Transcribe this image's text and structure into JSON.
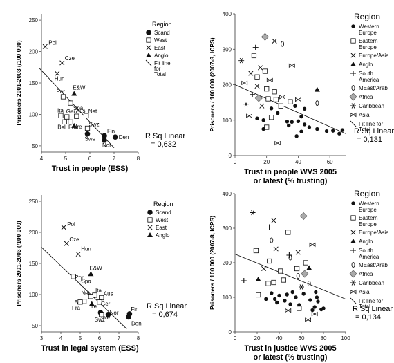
{
  "chart_data": [
    {
      "type": "scatter",
      "xlabel": "Trust in people (ESS)",
      "ylabel": "Prisoners 2001-2003 (/100 000)",
      "xlim": [
        4,
        8
      ],
      "ylim": [
        40,
        260
      ],
      "x_ticks": [
        "4",
        "5",
        "6",
        "7",
        "8"
      ],
      "y_ticks": [
        "50",
        "100",
        "150",
        "200",
        "250"
      ],
      "legend_title": "Region",
      "legend": [
        "Scand",
        "West",
        "East",
        "Anglo",
        "Fit line for Total"
      ],
      "rsq_label": "R Sq Linear",
      "rsq_value": "= 0,632",
      "fit_line": [
        [
          3.9,
          174
        ],
        [
          7.0,
          47
        ]
      ],
      "points": [
        {
          "label": "Pol",
          "x": 4.15,
          "y": 208,
          "region": "East"
        },
        {
          "label": "Cze",
          "x": 4.85,
          "y": 182,
          "region": "East"
        },
        {
          "label": "Hun",
          "x": 4.65,
          "y": 165,
          "region": "East"
        },
        {
          "label": "E&W",
          "x": 5.35,
          "y": 133,
          "region": "Anglo"
        },
        {
          "label": "Por",
          "x": 4.9,
          "y": 128,
          "region": "West"
        },
        {
          "label": "Spa",
          "x": 5.2,
          "y": 118,
          "region": "West"
        },
        {
          "label": "Ita",
          "x": 4.8,
          "y": 98,
          "region": "West"
        },
        {
          "label": "Ger",
          "x": 5.05,
          "y": 96,
          "region": "West"
        },
        {
          "label": "Aus",
          "x": 5.45,
          "y": 97,
          "region": "West"
        },
        {
          "label": "Net",
          "x": 5.85,
          "y": 98,
          "region": "West"
        },
        {
          "label": "Bel",
          "x": 4.95,
          "y": 88,
          "region": "West"
        },
        {
          "label": "Fra",
          "x": 5.2,
          "y": 88,
          "region": "West"
        },
        {
          "label": "Ire",
          "x": 5.35,
          "y": 82,
          "region": "Anglo"
        },
        {
          "label": "Swz",
          "x": 5.9,
          "y": 78,
          "region": "West"
        },
        {
          "label": "Fin",
          "x": 6.6,
          "y": 66,
          "region": "Scand"
        },
        {
          "label": "Den",
          "x": 7.05,
          "y": 64,
          "region": "Scand"
        },
        {
          "label": "Swe",
          "x": 5.9,
          "y": 69,
          "region": "Scand"
        },
        {
          "label": "Nor",
          "x": 6.6,
          "y": 59,
          "region": "Scand"
        }
      ]
    },
    {
      "type": "scatter",
      "xlabel": "Trust in people WVS 2005\nor latest (% trusting)",
      "ylabel": "Prisoners / 100 000 (2007-8, ICPS)",
      "xlim": [
        0,
        70
      ],
      "ylim": [
        0,
        400
      ],
      "x_ticks": [
        "0",
        "20",
        "40",
        "60"
      ],
      "y_ticks": [
        "0",
        "100",
        "200",
        "300",
        "400"
      ],
      "legend_title": "Region",
      "legend": [
        "Western Europe",
        "Eastern Europe",
        "Europe/Asia",
        "Anglo",
        "South America",
        "MEast/Arab",
        "Africa",
        "Caribbean",
        "Asia",
        "Fit line for Total"
      ],
      "rsq_label": "R Sq Linear",
      "rsq_value": "= 0,131",
      "fit_line": [
        [
          0,
          200
        ],
        [
          70,
          62
        ]
      ],
      "points": [
        {
          "x": 19,
          "y": 335,
          "region": "Africa"
        },
        {
          "x": 25,
          "y": 323,
          "region": "Europe/Asia"
        },
        {
          "x": 13,
          "y": 305,
          "region": "South America"
        },
        {
          "x": 30,
          "y": 315,
          "region": "MEast/Arab"
        },
        {
          "x": 12,
          "y": 282,
          "region": "Eastern Europe"
        },
        {
          "x": 4,
          "y": 268,
          "region": "Caribbean"
        },
        {
          "x": 16,
          "y": 248,
          "region": "Europe/Asia"
        },
        {
          "x": 19,
          "y": 238,
          "region": "Eastern Europe"
        },
        {
          "x": 36,
          "y": 254,
          "region": "Asia"
        },
        {
          "x": 10,
          "y": 232,
          "region": "Europe/Asia"
        },
        {
          "x": 14,
          "y": 222,
          "region": "Eastern Europe"
        },
        {
          "x": 22,
          "y": 213,
          "region": "Asia"
        },
        {
          "x": 6,
          "y": 205,
          "region": "Asia"
        },
        {
          "x": 14,
          "y": 196,
          "region": "Europe/Asia"
        },
        {
          "x": 20,
          "y": 188,
          "region": "Eastern Europe"
        },
        {
          "x": 25,
          "y": 180,
          "region": "Eastern Europe"
        },
        {
          "x": 52,
          "y": 186,
          "region": "Anglo"
        },
        {
          "x": 11,
          "y": 172,
          "region": "South America"
        },
        {
          "x": 15,
          "y": 162,
          "region": "Africa"
        },
        {
          "x": 21,
          "y": 160,
          "region": "Eastern Europe"
        },
        {
          "x": 26,
          "y": 158,
          "region": "Eastern Europe"
        },
        {
          "x": 30,
          "y": 165,
          "region": "Asia"
        },
        {
          "x": 35,
          "y": 152,
          "region": "Eastern Europe"
        },
        {
          "x": 40,
          "y": 158,
          "region": "Asia"
        },
        {
          "x": 52,
          "y": 148,
          "region": "MEast/Arab"
        },
        {
          "x": 7,
          "y": 145,
          "region": "Caribbean"
        },
        {
          "x": 17,
          "y": 140,
          "region": "Europe/Asia"
        },
        {
          "x": 23,
          "y": 133,
          "region": "Western Europe"
        },
        {
          "x": 29,
          "y": 140,
          "region": "Eastern Europe"
        },
        {
          "x": 38,
          "y": 140,
          "region": "Western Europe"
        },
        {
          "x": 44,
          "y": 132,
          "region": "Western Europe"
        },
        {
          "x": 9,
          "y": 112,
          "region": "Asia"
        },
        {
          "x": 14,
          "y": 105,
          "region": "Western Europe"
        },
        {
          "x": 18,
          "y": 100,
          "region": "Western Europe"
        },
        {
          "x": 23,
          "y": 108,
          "region": "Eastern Europe"
        },
        {
          "x": 27,
          "y": 120,
          "region": "Western Europe"
        },
        {
          "x": 33,
          "y": 96,
          "region": "Western Europe"
        },
        {
          "x": 36,
          "y": 95,
          "region": "Western Europe"
        },
        {
          "x": 40,
          "y": 97,
          "region": "Western Europe"
        },
        {
          "x": 42,
          "y": 110,
          "region": "Western Europe"
        },
        {
          "x": 20,
          "y": 80,
          "region": "Eastern Europe"
        },
        {
          "x": 18,
          "y": 75,
          "region": "Western Europe"
        },
        {
          "x": 34,
          "y": 85,
          "region": "Western Europe"
        },
        {
          "x": 44,
          "y": 88,
          "region": "Western Europe"
        },
        {
          "x": 47,
          "y": 80,
          "region": "Western Europe"
        },
        {
          "x": 42,
          "y": 68,
          "region": "Western Europe"
        },
        {
          "x": 52,
          "y": 75,
          "region": "Western Europe"
        },
        {
          "x": 58,
          "y": 69,
          "region": "Western Europe"
        },
        {
          "x": 62,
          "y": 70,
          "region": "Western Europe"
        },
        {
          "x": 68,
          "y": 72,
          "region": "Western Europe"
        },
        {
          "x": 66,
          "y": 62,
          "region": "Western Europe"
        },
        {
          "x": 39,
          "y": 55,
          "region": "Western Europe"
        },
        {
          "x": 27,
          "y": 35,
          "region": "Asia"
        }
      ]
    },
    {
      "type": "scatter",
      "xlabel": "Trust in legal system (ESS)",
      "ylabel": "Prisoners 2001-2003 (/100 000)",
      "xlim": [
        3,
        8
      ],
      "ylim": [
        40,
        260
      ],
      "x_ticks": [
        "3",
        "4",
        "5",
        "6",
        "7",
        "8"
      ],
      "y_ticks": [
        "50",
        "100",
        "150",
        "200",
        "250"
      ],
      "legend_title": "Region",
      "legend": [
        "Scand",
        "West",
        "East",
        "Anglo"
      ],
      "rsq_label": "R Sq Linear",
      "rsq_value": "= 0,674",
      "fit_line": [
        [
          3.0,
          176
        ],
        [
          7.4,
          45
        ]
      ],
      "points": [
        {
          "label": "Pol",
          "x": 4.15,
          "y": 208,
          "region": "East"
        },
        {
          "label": "Cze",
          "x": 4.3,
          "y": 182,
          "region": "East"
        },
        {
          "label": "Hun",
          "x": 4.9,
          "y": 165,
          "region": "East"
        },
        {
          "label": "E&W",
          "x": 5.55,
          "y": 133,
          "region": "Anglo"
        },
        {
          "label": "Por",
          "x": 4.65,
          "y": 129,
          "region": "West"
        },
        {
          "label": "Spa",
          "x": 4.95,
          "y": 125,
          "region": "West"
        },
        {
          "label": "Ita",
          "x": 5.75,
          "y": 99,
          "region": "West"
        },
        {
          "label": "Aus",
          "x": 6.1,
          "y": 95,
          "region": "West"
        },
        {
          "label": "Net",
          "x": 5.55,
          "y": 97,
          "region": "West"
        },
        {
          "label": "Bel",
          "x": 5.2,
          "y": 89,
          "region": "West"
        },
        {
          "label": "Ger",
          "x": 6.0,
          "y": 88,
          "region": "West"
        },
        {
          "label": "Ire",
          "x": 5.6,
          "y": 85,
          "region": "Anglo"
        },
        {
          "label": "Fra",
          "x": 5.0,
          "y": 88,
          "region": "West"
        },
        {
          "label": "Swe",
          "x": 6.05,
          "y": 71,
          "region": "Scand"
        },
        {
          "label": "Nor",
          "x": 6.45,
          "y": 68,
          "region": "Scand"
        },
        {
          "label": "Swz",
          "x": 6.1,
          "y": 68,
          "region": "West"
        },
        {
          "label": "Fin",
          "x": 7.55,
          "y": 69,
          "region": "Scand"
        },
        {
          "label": "Den",
          "x": 7.5,
          "y": 64,
          "region": "Scand"
        }
      ]
    },
    {
      "type": "scatter",
      "xlabel": "Trust in justice WVS 2005\nor latest (% trusting)",
      "ylabel": "Prisoners / 100 000 (2007-8, ICPS)",
      "xlim": [
        0,
        100
      ],
      "ylim": [
        0,
        400
      ],
      "x_ticks": [
        "0",
        "20",
        "40",
        "60",
        "80",
        "100"
      ],
      "y_ticks": [
        "0",
        "100",
        "200",
        "300",
        "400"
      ],
      "legend_title": "Region",
      "legend": [
        "Western Europe",
        "Eastern Europe",
        "Europe/Asia",
        "Anglo",
        "South America",
        "MEast/Arab",
        "Africa",
        "Caribbean",
        "Asia",
        "Fit line for Total"
      ],
      "rsq_label": "R Sq Linear",
      "rsq_value": "= 0,134",
      "fit_line": [
        [
          0,
          225
        ],
        [
          100,
          95
        ]
      ],
      "points": [
        {
          "x": 16,
          "y": 345,
          "region": "Caribbean"
        },
        {
          "x": 62,
          "y": 335,
          "region": "Africa"
        },
        {
          "x": 35,
          "y": 322,
          "region": "Europe/Asia"
        },
        {
          "x": 31,
          "y": 303,
          "region": "South America"
        },
        {
          "x": 48,
          "y": 288,
          "region": "Eastern Europe"
        },
        {
          "x": 33,
          "y": 265,
          "region": "MEast/Arab"
        },
        {
          "x": 70,
          "y": 252,
          "region": "Asia"
        },
        {
          "x": 19,
          "y": 235,
          "region": "Eastern Europe"
        },
        {
          "x": 37,
          "y": 240,
          "region": "Europe/Asia"
        },
        {
          "x": 57,
          "y": 230,
          "region": "Europe/Asia"
        },
        {
          "x": 49,
          "y": 222,
          "region": "South America"
        },
        {
          "x": 50,
          "y": 215,
          "region": "MEast/Arab"
        },
        {
          "x": 31,
          "y": 205,
          "region": "Eastern Europe"
        },
        {
          "x": 64,
          "y": 200,
          "region": "Eastern Europe"
        },
        {
          "x": 26,
          "y": 183,
          "region": "Europe/Asia"
        },
        {
          "x": 56,
          "y": 183,
          "region": "Eastern Europe"
        },
        {
          "x": 67,
          "y": 185,
          "region": "Anglo"
        },
        {
          "x": 41,
          "y": 176,
          "region": "Eastern Europe"
        },
        {
          "x": 63,
          "y": 168,
          "region": "Africa"
        },
        {
          "x": 57,
          "y": 162,
          "region": "MEast/Arab"
        },
        {
          "x": 8,
          "y": 148,
          "region": "South America"
        },
        {
          "x": 21,
          "y": 152,
          "region": "Anglo"
        },
        {
          "x": 44,
          "y": 150,
          "region": "Eastern Europe"
        },
        {
          "x": 35,
          "y": 143,
          "region": "Eastern Europe"
        },
        {
          "x": 30,
          "y": 140,
          "region": "Eastern Europe"
        },
        {
          "x": 67,
          "y": 140,
          "region": "MEast/Arab"
        },
        {
          "x": 60,
          "y": 130,
          "region": "Caribbean"
        },
        {
          "x": 21,
          "y": 107,
          "region": "Eastern Europe"
        },
        {
          "x": 33,
          "y": 112,
          "region": "Western Europe"
        },
        {
          "x": 40,
          "y": 105,
          "region": "Western Europe"
        },
        {
          "x": 47,
          "y": 108,
          "region": "Western Europe"
        },
        {
          "x": 52,
          "y": 115,
          "region": "Western Europe"
        },
        {
          "x": 62,
          "y": 110,
          "region": "Western Europe"
        },
        {
          "x": 73,
          "y": 115,
          "region": "Western Europe"
        },
        {
          "x": 28,
          "y": 95,
          "region": "Western Europe"
        },
        {
          "x": 36,
          "y": 95,
          "region": "Western Europe"
        },
        {
          "x": 45,
          "y": 90,
          "region": "Western Europe"
        },
        {
          "x": 55,
          "y": 100,
          "region": "Western Europe"
        },
        {
          "x": 68,
          "y": 92,
          "region": "Western Europe"
        },
        {
          "x": 75,
          "y": 88,
          "region": "Western Europe"
        },
        {
          "x": 38,
          "y": 85,
          "region": "Western Europe"
        },
        {
          "x": 50,
          "y": 80,
          "region": "Western Europe"
        },
        {
          "x": 58,
          "y": 78,
          "region": "Western Europe"
        },
        {
          "x": 72,
          "y": 72,
          "region": "Western Europe"
        },
        {
          "x": 78,
          "y": 65,
          "region": "Western Europe"
        },
        {
          "x": 80,
          "y": 68,
          "region": "Western Europe"
        },
        {
          "x": 70,
          "y": 63,
          "region": "Western Europe"
        },
        {
          "x": 58,
          "y": 68,
          "region": "Eastern Europe"
        },
        {
          "x": 74,
          "y": 100,
          "region": "Western Europe"
        },
        {
          "x": 48,
          "y": 62,
          "region": "Asia"
        },
        {
          "x": 72,
          "y": 52,
          "region": "Asia"
        },
        {
          "x": 66,
          "y": 35,
          "region": "Asia"
        }
      ]
    }
  ]
}
